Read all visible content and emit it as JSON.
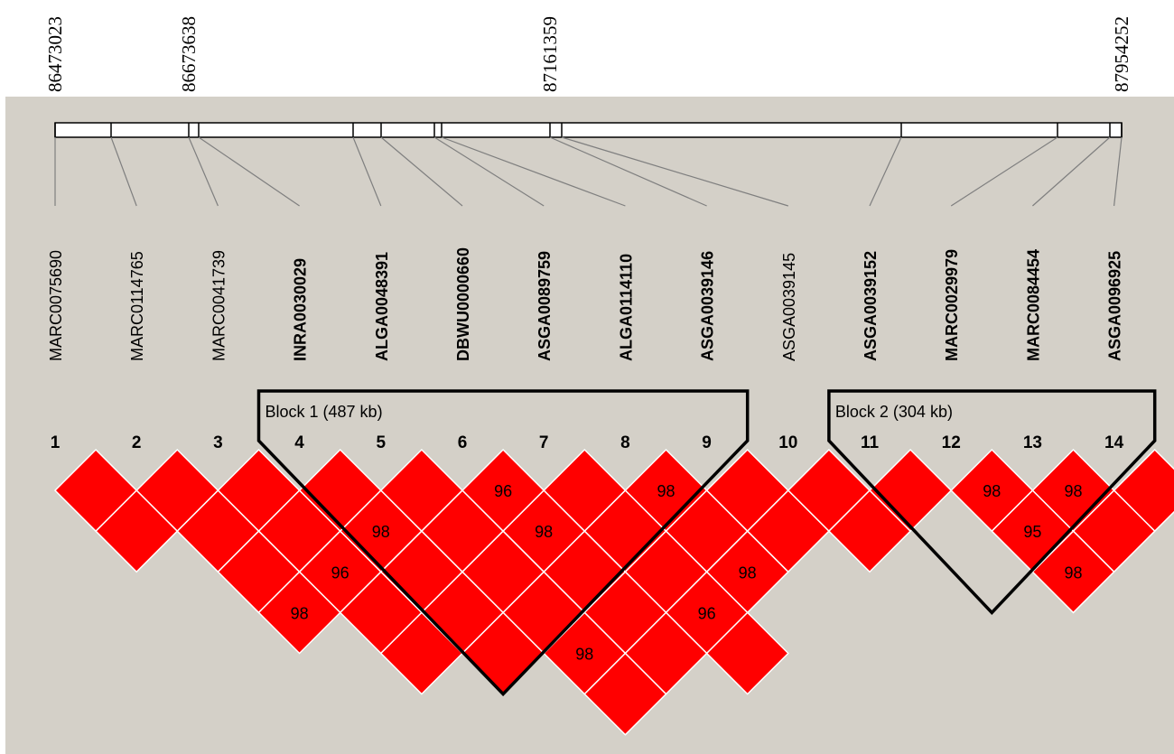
{
  "positions": [
    {
      "label": "86473023",
      "marker": 1
    },
    {
      "label": "86673638",
      "marker": 3
    },
    {
      "label": "87161359",
      "marker": 9
    },
    {
      "label": "87954252",
      "marker": 14
    }
  ],
  "markers": [
    {
      "num": "1",
      "name": "MARC0075690",
      "bold": false
    },
    {
      "num": "2",
      "name": "MARC0114765",
      "bold": false
    },
    {
      "num": "3",
      "name": "MARC0041739",
      "bold": false
    },
    {
      "num": "4",
      "name": "INRA0030029",
      "bold": true
    },
    {
      "num": "5",
      "name": "ALGA0048391",
      "bold": true
    },
    {
      "num": "6",
      "name": "DBWU0000660",
      "bold": true
    },
    {
      "num": "7",
      "name": "ASGA0089759",
      "bold": true
    },
    {
      "num": "8",
      "name": "ALGA0114110",
      "bold": true
    },
    {
      "num": "9",
      "name": "ASGA0039146",
      "bold": true
    },
    {
      "num": "10",
      "name": "ASGA0039145",
      "bold": false
    },
    {
      "num": "11",
      "name": "ASGA0039152",
      "bold": true
    },
    {
      "num": "12",
      "name": "MARC0029979",
      "bold": true
    },
    {
      "num": "13",
      "name": "MARC0084454",
      "bold": true
    },
    {
      "num": "14",
      "name": "ASGA0096925",
      "bold": true
    }
  ],
  "blocks": [
    {
      "label": "Block 1 (487 kb)",
      "start": 4,
      "end": 9
    },
    {
      "label": "Block 2 (304 kb)",
      "start": 11,
      "end": 14
    }
  ],
  "cells": [
    {
      "i": 1,
      "j": 2
    },
    {
      "i": 2,
      "j": 3
    },
    {
      "i": 3,
      "j": 4
    },
    {
      "i": 4,
      "j": 5
    },
    {
      "i": 5,
      "j": 6
    },
    {
      "i": 6,
      "j": 7,
      "value": "96"
    },
    {
      "i": 7,
      "j": 8
    },
    {
      "i": 8,
      "j": 9,
      "value": "98"
    },
    {
      "i": 9,
      "j": 10
    },
    {
      "i": 10,
      "j": 11
    },
    {
      "i": 11,
      "j": 12
    },
    {
      "i": 12,
      "j": 13,
      "value": "98"
    },
    {
      "i": 13,
      "j": 14,
      "value": "98"
    },
    {
      "i": 14,
      "j": 15
    },
    {
      "i": 1,
      "j": 3
    },
    {
      "i": 2,
      "j": 4
    },
    {
      "i": 3,
      "j": 5
    },
    {
      "i": 4,
      "j": 6,
      "value": "98"
    },
    {
      "i": 5,
      "j": 7
    },
    {
      "i": 6,
      "j": 8,
      "value": "98"
    },
    {
      "i": 7,
      "j": 9
    },
    {
      "i": 8,
      "j": 10
    },
    {
      "i": 9,
      "j": 11
    },
    {
      "i": 10,
      "j": 12
    },
    {
      "i": 12,
      "j": 14,
      "value": "95"
    },
    {
      "i": 13,
      "j": 15
    },
    {
      "i": 2,
      "j": 5
    },
    {
      "i": 3,
      "j": 6,
      "value": "96"
    },
    {
      "i": 4,
      "j": 7
    },
    {
      "i": 5,
      "j": 8
    },
    {
      "i": 6,
      "j": 9
    },
    {
      "i": 7,
      "j": 10
    },
    {
      "i": 8,
      "j": 11,
      "value": "98"
    },
    {
      "i": 12,
      "j": 15,
      "value": "98"
    },
    {
      "i": 2,
      "j": 6,
      "value": "98"
    },
    {
      "i": 3,
      "j": 7
    },
    {
      "i": 4,
      "j": 8
    },
    {
      "i": 5,
      "j": 9
    },
    {
      "i": 6,
      "j": 10
    },
    {
      "i": 7,
      "j": 11,
      "value": "96"
    },
    {
      "i": 3,
      "j": 8
    },
    {
      "i": 4,
      "j": 9
    },
    {
      "i": 5,
      "j": 10,
      "value": "98"
    },
    {
      "i": 6,
      "j": 11
    },
    {
      "i": 7,
      "j": 12
    },
    {
      "i": 5,
      "j": 11
    }
  ],
  "colors": {
    "panel": "#d4d0c8",
    "cell": "#ff0000",
    "cell_border": "#ffffff",
    "bar": "#ffffff",
    "block_outline": "#000000",
    "connector": "#7f7f7f"
  }
}
